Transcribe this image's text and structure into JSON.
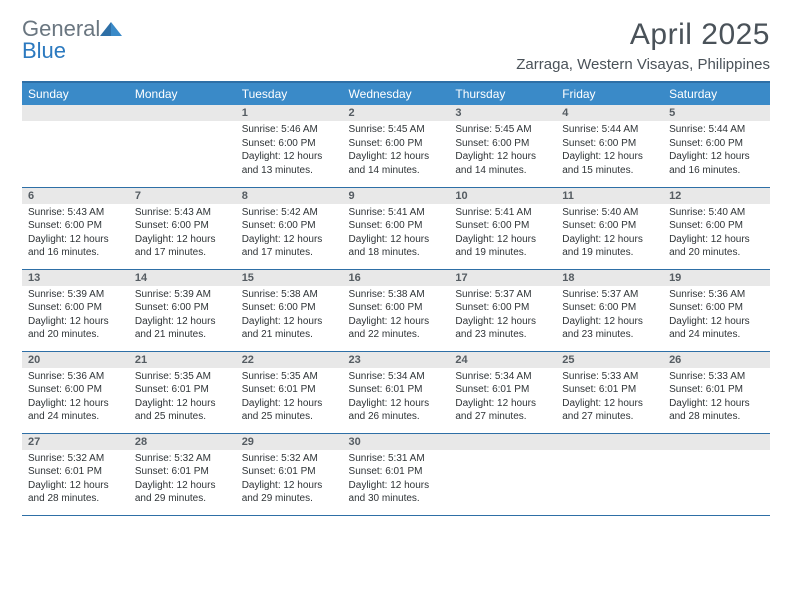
{
  "brand": {
    "word1": "General",
    "word2": "Blue"
  },
  "title": "April 2025",
  "location": "Zarraga, Western Visayas, Philippines",
  "colors": {
    "header_bg": "#3a8ac8",
    "header_text": "#ffffff",
    "rule": "#2e6fa6",
    "daynum_bg": "#e8e8e8",
    "body_text": "#2f3437",
    "title_text": "#4a5259"
  },
  "day_headers": [
    "Sunday",
    "Monday",
    "Tuesday",
    "Wednesday",
    "Thursday",
    "Friday",
    "Saturday"
  ],
  "weeks": [
    [
      null,
      null,
      {
        "n": "1",
        "sunrise": "5:46 AM",
        "sunset": "6:00 PM",
        "daylight": "12 hours and 13 minutes."
      },
      {
        "n": "2",
        "sunrise": "5:45 AM",
        "sunset": "6:00 PM",
        "daylight": "12 hours and 14 minutes."
      },
      {
        "n": "3",
        "sunrise": "5:45 AM",
        "sunset": "6:00 PM",
        "daylight": "12 hours and 14 minutes."
      },
      {
        "n": "4",
        "sunrise": "5:44 AM",
        "sunset": "6:00 PM",
        "daylight": "12 hours and 15 minutes."
      },
      {
        "n": "5",
        "sunrise": "5:44 AM",
        "sunset": "6:00 PM",
        "daylight": "12 hours and 16 minutes."
      }
    ],
    [
      {
        "n": "6",
        "sunrise": "5:43 AM",
        "sunset": "6:00 PM",
        "daylight": "12 hours and 16 minutes."
      },
      {
        "n": "7",
        "sunrise": "5:43 AM",
        "sunset": "6:00 PM",
        "daylight": "12 hours and 17 minutes."
      },
      {
        "n": "8",
        "sunrise": "5:42 AM",
        "sunset": "6:00 PM",
        "daylight": "12 hours and 17 minutes."
      },
      {
        "n": "9",
        "sunrise": "5:41 AM",
        "sunset": "6:00 PM",
        "daylight": "12 hours and 18 minutes."
      },
      {
        "n": "10",
        "sunrise": "5:41 AM",
        "sunset": "6:00 PM",
        "daylight": "12 hours and 19 minutes."
      },
      {
        "n": "11",
        "sunrise": "5:40 AM",
        "sunset": "6:00 PM",
        "daylight": "12 hours and 19 minutes."
      },
      {
        "n": "12",
        "sunrise": "5:40 AM",
        "sunset": "6:00 PM",
        "daylight": "12 hours and 20 minutes."
      }
    ],
    [
      {
        "n": "13",
        "sunrise": "5:39 AM",
        "sunset": "6:00 PM",
        "daylight": "12 hours and 20 minutes."
      },
      {
        "n": "14",
        "sunrise": "5:39 AM",
        "sunset": "6:00 PM",
        "daylight": "12 hours and 21 minutes."
      },
      {
        "n": "15",
        "sunrise": "5:38 AM",
        "sunset": "6:00 PM",
        "daylight": "12 hours and 21 minutes."
      },
      {
        "n": "16",
        "sunrise": "5:38 AM",
        "sunset": "6:00 PM",
        "daylight": "12 hours and 22 minutes."
      },
      {
        "n": "17",
        "sunrise": "5:37 AM",
        "sunset": "6:00 PM",
        "daylight": "12 hours and 23 minutes."
      },
      {
        "n": "18",
        "sunrise": "5:37 AM",
        "sunset": "6:00 PM",
        "daylight": "12 hours and 23 minutes."
      },
      {
        "n": "19",
        "sunrise": "5:36 AM",
        "sunset": "6:00 PM",
        "daylight": "12 hours and 24 minutes."
      }
    ],
    [
      {
        "n": "20",
        "sunrise": "5:36 AM",
        "sunset": "6:00 PM",
        "daylight": "12 hours and 24 minutes."
      },
      {
        "n": "21",
        "sunrise": "5:35 AM",
        "sunset": "6:01 PM",
        "daylight": "12 hours and 25 minutes."
      },
      {
        "n": "22",
        "sunrise": "5:35 AM",
        "sunset": "6:01 PM",
        "daylight": "12 hours and 25 minutes."
      },
      {
        "n": "23",
        "sunrise": "5:34 AM",
        "sunset": "6:01 PM",
        "daylight": "12 hours and 26 minutes."
      },
      {
        "n": "24",
        "sunrise": "5:34 AM",
        "sunset": "6:01 PM",
        "daylight": "12 hours and 27 minutes."
      },
      {
        "n": "25",
        "sunrise": "5:33 AM",
        "sunset": "6:01 PM",
        "daylight": "12 hours and 27 minutes."
      },
      {
        "n": "26",
        "sunrise": "5:33 AM",
        "sunset": "6:01 PM",
        "daylight": "12 hours and 28 minutes."
      }
    ],
    [
      {
        "n": "27",
        "sunrise": "5:32 AM",
        "sunset": "6:01 PM",
        "daylight": "12 hours and 28 minutes."
      },
      {
        "n": "28",
        "sunrise": "5:32 AM",
        "sunset": "6:01 PM",
        "daylight": "12 hours and 29 minutes."
      },
      {
        "n": "29",
        "sunrise": "5:32 AM",
        "sunset": "6:01 PM",
        "daylight": "12 hours and 29 minutes."
      },
      {
        "n": "30",
        "sunrise": "5:31 AM",
        "sunset": "6:01 PM",
        "daylight": "12 hours and 30 minutes."
      },
      null,
      null,
      null
    ]
  ],
  "labels": {
    "sunrise": "Sunrise:",
    "sunset": "Sunset:",
    "daylight": "Daylight:"
  }
}
